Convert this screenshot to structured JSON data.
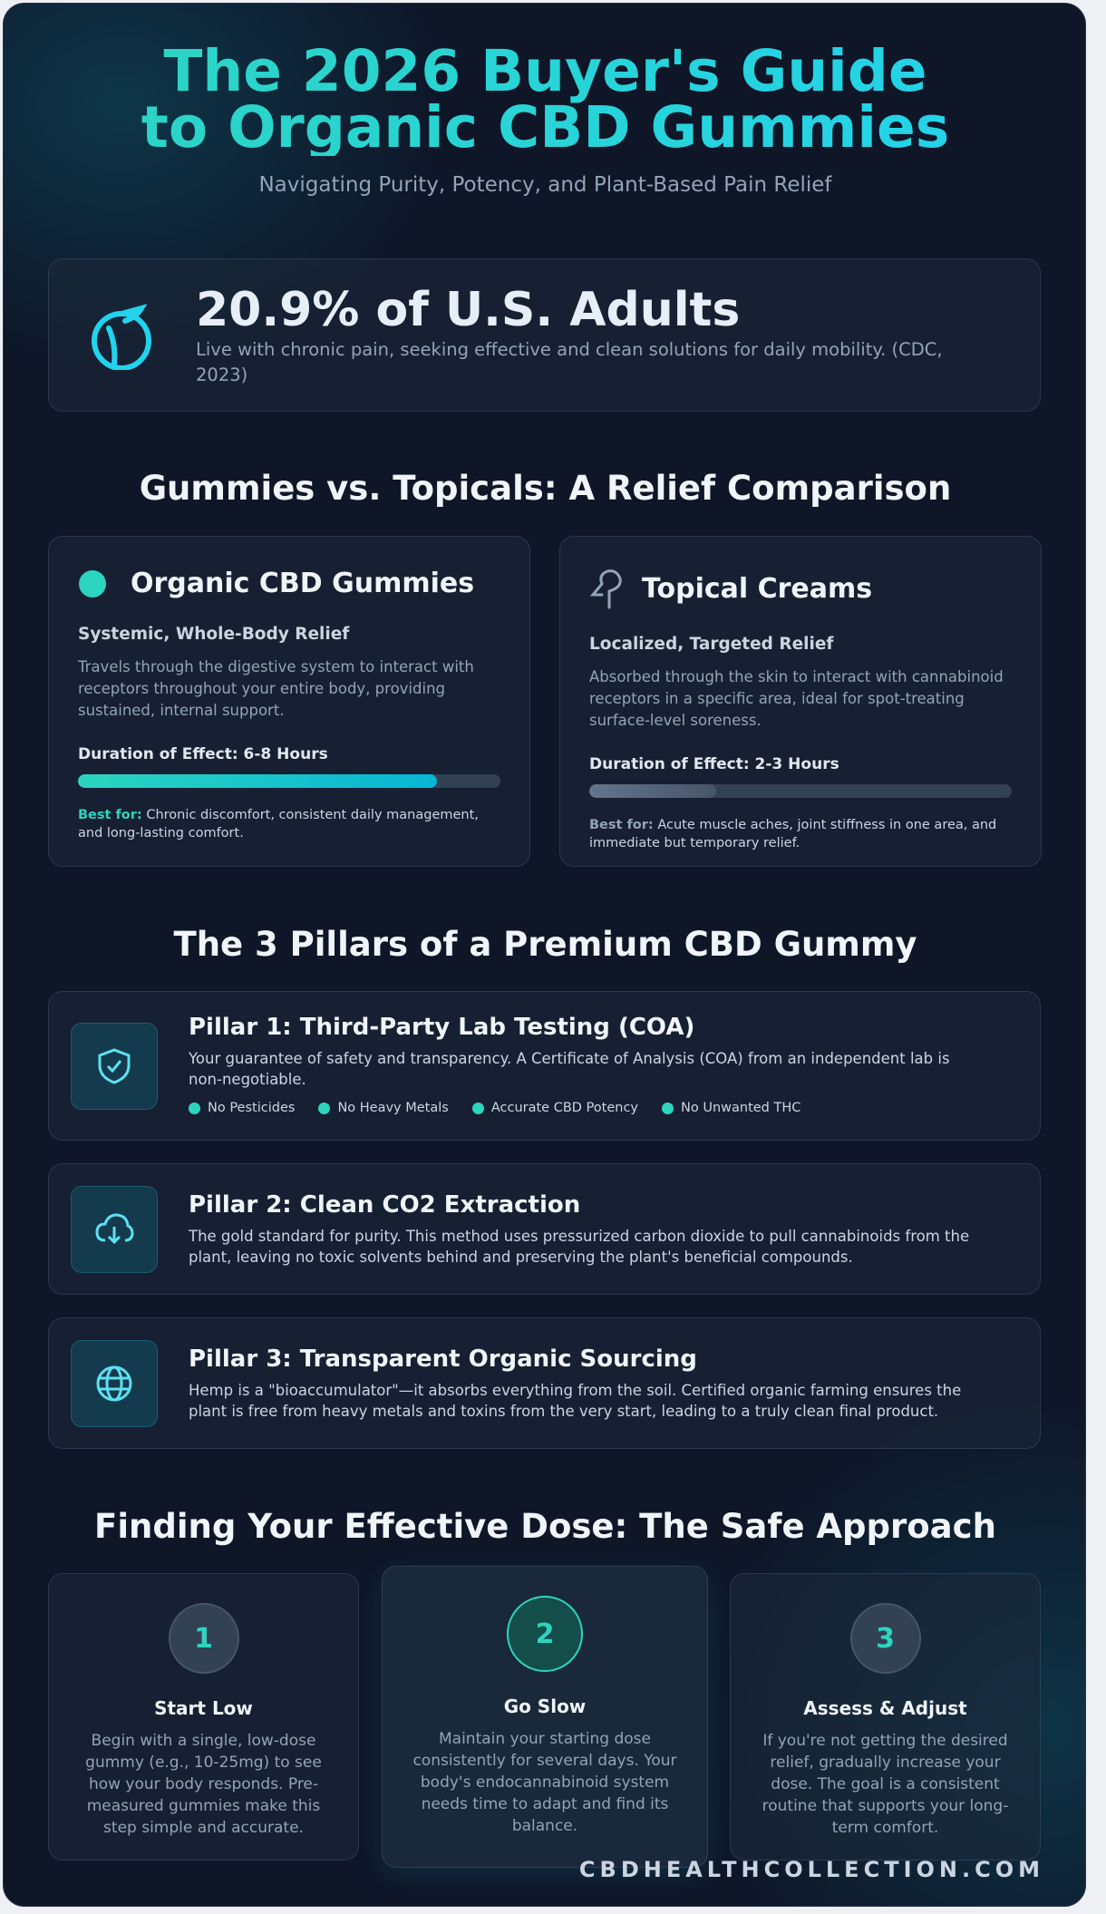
{
  "header": {
    "title": "The 2026 Buyer's Guide to Organic CBD Gummies",
    "subtitle": "Navigating Purity, Potency, and Plant-Based Pain Relief"
  },
  "stat": {
    "headline": "20.9% of U.S. Adults",
    "description": "Live with chronic pain, seeking effective and clean solutions for daily mobility. (CDC, 2023)"
  },
  "comparison": {
    "heading": "Gummies vs. Topicals: A Relief Comparison",
    "cards": [
      {
        "title": "Organic CBD Gummies",
        "subtitle": "Systemic, Whole-Body Relief",
        "description": "Travels through the digestive system to interact with receptors throughout your entire body, providing sustained, internal support.",
        "duration": "Duration of Effect: 6-8 Hours",
        "best_for_label": "Best for:",
        "best_for": "Chronic discomfort, consistent daily management, and long-lasting comfort."
      },
      {
        "title": "Topical Creams",
        "subtitle": "Localized, Targeted Relief",
        "description": "Absorbed through the skin to interact with cannabinoid receptors in a specific area, ideal for spot-treating surface-level soreness.",
        "duration": "Duration of Effect: 2-3 Hours",
        "best_for_label": "Best for:",
        "best_for": "Acute muscle aches, joint stiffness in one area, and immediate but temporary relief."
      }
    ]
  },
  "pillars": {
    "heading": "The 3 Pillars of a Premium CBD Gummy",
    "items": [
      {
        "title": "Pillar 1: Third-Party Lab Testing (COA)",
        "description": "Your guarantee of safety and transparency. A Certificate of Analysis (COA) from an independent lab is non-negotiable.",
        "checks": [
          "No Pesticides",
          "No Heavy Metals",
          "Accurate CBD Potency",
          "No Unwanted THC"
        ]
      },
      {
        "title": "Pillar 2: Clean CO2 Extraction",
        "description": "The gold standard for purity. This method uses pressurized carbon dioxide to pull cannabinoids from the plant, leaving no toxic solvents behind and preserving the plant's beneficial compounds."
      },
      {
        "title": "Pillar 3: Transparent Organic Sourcing",
        "description": "Hemp is a \"bioaccumulator\"—it absorbs everything from the soil. Certified organic farming ensures the plant is free from heavy metals and toxins from the very start, leading to a truly clean final product."
      }
    ]
  },
  "dosing": {
    "heading": "Finding Your Effective Dose: The Safe Approach",
    "steps": [
      {
        "number": "1",
        "title": "Start Low",
        "description": "Begin with a single, low-dose gummy (e.g., 10-25mg) to see how your body responds. Pre-measured gummies make this step simple and accurate."
      },
      {
        "number": "2",
        "title": "Go Slow",
        "description": "Maintain your starting dose consistently for several days. Your body's endocannabinoid system needs time to adapt and find its balance."
      },
      {
        "number": "3",
        "title": "Assess & Adjust",
        "description": "If you're not getting the desired relief, gradually increase your dose. The goal is a consistent routine that supports your long-term comfort."
      }
    ]
  },
  "footer": {
    "site": "CBDHEALTHCOLLECTION.COM"
  }
}
